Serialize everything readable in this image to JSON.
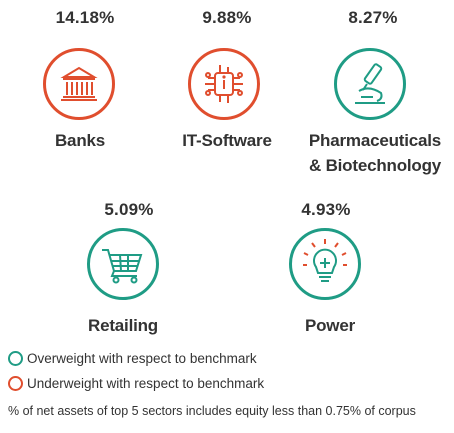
{
  "sectors": [
    {
      "name": "Banks",
      "value": "14.18%",
      "icon": "bank-building-icon",
      "status": "underweight"
    },
    {
      "name": "IT-Software",
      "value": "9.88%",
      "icon": "circuit-chip-icon",
      "status": "underweight"
    },
    {
      "name_line1": "Pharmaceuticals",
      "name_line2": "& Biotechnology",
      "value": "8.27%",
      "icon": "microscope-icon",
      "status": "overweight"
    },
    {
      "name": "Retailing",
      "value": "5.09%",
      "icon": "shopping-cart-icon",
      "status": "overweight"
    },
    {
      "name": "Power",
      "value": "4.93%",
      "icon": "light-bulb-icon",
      "status": "overweight"
    }
  ],
  "legend": {
    "overweight": "Overweight with respect to benchmark",
    "underweight": "Underweight with respect to benchmark"
  },
  "note": "% of net assets of top 5 sectors includes equity less than 0.75% of corpus",
  "colors": {
    "overweight": "#1f9c85",
    "underweight": "#e04e2e",
    "text": "#333333"
  }
}
